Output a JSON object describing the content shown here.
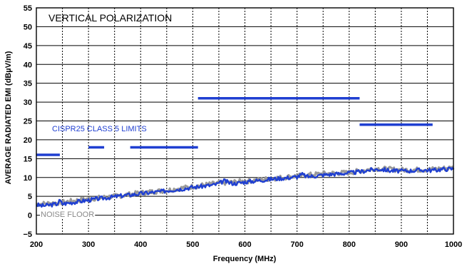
{
  "chart_data": {
    "type": "line",
    "title": "VERTICAL POLARIZATION",
    "xlabel": "Frequency (MHz)",
    "ylabel": "AVERAGE RADIATED EMI (dBµV/m)",
    "xlim": [
      200,
      1000
    ],
    "ylim": [
      -5,
      55
    ],
    "x_ticks": [
      200,
      300,
      400,
      500,
      600,
      700,
      800,
      900,
      1000
    ],
    "y_ticks": [
      -5,
      0,
      5,
      10,
      15,
      20,
      25,
      30,
      35,
      40,
      45,
      50,
      55
    ],
    "x_tick_labels": [
      "200",
      "300",
      "400",
      "500",
      "600",
      "700",
      "800",
      "900",
      "1000"
    ],
    "y_tick_labels": [
      "−5",
      "0",
      "5",
      "10",
      "15",
      "20",
      "25",
      "30",
      "35",
      "40",
      "45",
      "50",
      "55"
    ],
    "grid": {
      "vertical": "dashed",
      "horizontal": "solid"
    },
    "annotations": {
      "limits_label": "CISPR25 CLASS 5 LIMITS",
      "noise_label": "NOISE FLOOR"
    },
    "colors": {
      "emi": "#1f3fd1",
      "noise": "#9a9a9a",
      "limit": "#1f3fd1"
    },
    "limit_segments": [
      {
        "x": [
          200,
          245
        ],
        "y": 16
      },
      {
        "x": [
          300,
          330
        ],
        "y": 18
      },
      {
        "x": [
          380,
          510
        ],
        "y": 18
      },
      {
        "x": [
          510,
          820
        ],
        "y": 31
      },
      {
        "x": [
          820,
          960
        ],
        "y": 24
      }
    ],
    "series": [
      {
        "x": [
          200,
          210,
          220,
          230,
          240,
          245,
          250,
          260,
          280,
          300,
          320,
          340,
          360,
          380,
          400,
          420,
          440,
          460,
          480,
          500,
          520,
          540,
          550,
          560,
          570,
          580,
          600,
          620,
          640,
          660,
          680,
          700,
          710,
          720,
          740,
          760,
          780,
          800,
          820,
          840,
          860,
          880,
          900,
          920,
          940,
          960,
          980,
          1000
        ],
        "y": [
          2.8,
          2.5,
          2.6,
          2.8,
          3.0,
          3.9,
          3.0,
          3.2,
          3.6,
          4.0,
          4.4,
          4.7,
          5.1,
          5.4,
          5.7,
          6.0,
          6.3,
          6.7,
          7.0,
          7.4,
          7.7,
          8.0,
          8.4,
          9.1,
          8.6,
          8.4,
          8.8,
          9.1,
          9.4,
          9.7,
          9.9,
          10.2,
          10.8,
          10.2,
          10.5,
          10.8,
          11.0,
          11.2,
          11.5,
          12.0,
          12.2,
          11.8,
          11.7,
          11.8,
          12.0,
          11.9,
          12.2,
          12.3
        ]
      },
      {
        "x": [
          200,
          250,
          300,
          350,
          400,
          450,
          500,
          550,
          600,
          650,
          700,
          750,
          800,
          850,
          900,
          950,
          1000
        ],
        "y": [
          2.9,
          3.4,
          4.3,
          5.0,
          5.9,
          6.6,
          7.6,
          8.5,
          9.0,
          9.7,
          10.4,
          11.0,
          11.3,
          12.4,
          12.0,
          12.1,
          12.6
        ]
      }
    ]
  }
}
